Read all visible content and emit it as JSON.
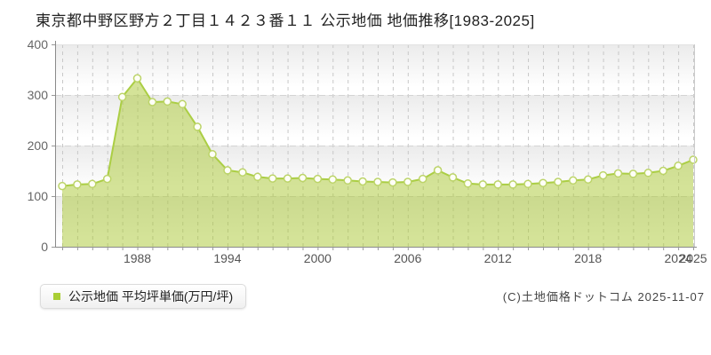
{
  "title": "東京都中野区野方２丁目１４２３番１１ 公示地価 地価推移[1983-2025]",
  "legend": {
    "label": "公示地価 平均坪単価(万円/坪)",
    "marker_color": "#a9ce35"
  },
  "footer": {
    "copyright": "(C)土地価格ドットコム 2025-11-07"
  },
  "chart_data": {
    "type": "area",
    "title": "東京都中野区野方２丁目１４２３番１１ 公示地価 地価推移[1983-2025]",
    "series_name": "公示地価 平均坪単価(万円/坪)",
    "xlabel": "",
    "ylabel": "万円/坪",
    "x": [
      1983,
      1984,
      1985,
      1986,
      1987,
      1988,
      1989,
      1990,
      1991,
      1992,
      1993,
      1994,
      1995,
      1996,
      1997,
      1998,
      1999,
      2000,
      2001,
      2002,
      2003,
      2004,
      2005,
      2006,
      2007,
      2008,
      2009,
      2010,
      2011,
      2012,
      2013,
      2014,
      2015,
      2016,
      2017,
      2018,
      2019,
      2020,
      2021,
      2022,
      2023,
      2024,
      2025
    ],
    "values": [
      120,
      123,
      124,
      134,
      296,
      333,
      286,
      287,
      282,
      237,
      183,
      151,
      147,
      138,
      135,
      135,
      136,
      134,
      133,
      131,
      129,
      128,
      127,
      128,
      134,
      151,
      137,
      125,
      123,
      123,
      123,
      124,
      126,
      128,
      131,
      133,
      141,
      145,
      144,
      146,
      150,
      160,
      172
    ],
    "ylim": [
      0,
      400
    ],
    "y_ticks": [
      0,
      100,
      200,
      300,
      400
    ],
    "x_tick_labels": [
      1988,
      1994,
      2000,
      2006,
      2012,
      2018,
      2024,
      2025
    ],
    "grid": true,
    "legend_position": "bottom-left",
    "colors": {
      "area_fill": "rgba(170,200,50,0.5)",
      "line": "#abce44",
      "marker_fill": "#fefff6",
      "marker_stroke": "#bcd468",
      "grid_vertical": "#c8c8c8",
      "grid_horizontal": "#d4d4d4",
      "axis": "#8a8a8a",
      "tick_label": "#666666",
      "band_top": "#ebebeb",
      "band_bottom": "#ffffff"
    }
  }
}
